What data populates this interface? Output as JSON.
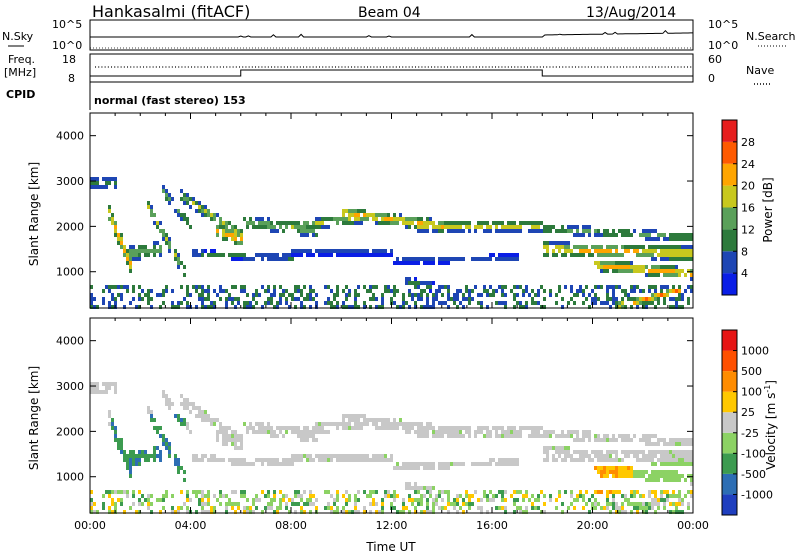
{
  "header": {
    "station": "Hankasalmi (fitACF)",
    "beam": "Beam 04",
    "date": "13/Aug/2014"
  },
  "top_panels": {
    "nsky_label": "N.Sky",
    "nsky_ticks": [
      "10^5",
      "10^0"
    ],
    "nsearch_label": "N.Search",
    "nsearch_ticks": [
      "10^5",
      "10^0"
    ],
    "freq_label_1": "Freq.",
    "freq_label_2": "[MHz]",
    "freq_ticks": [
      "18",
      "8"
    ],
    "nave_label": "Nave",
    "nave_ticks": [
      "60",
      "0"
    ],
    "cpid_label": "CPID",
    "cpid_text": "normal (fast stereo) 153"
  },
  "chart_data": [
    {
      "type": "heatmap",
      "name": "power-panel",
      "ylabel": "Slant Range [km]",
      "xlabel": "",
      "yticks": [
        1000,
        2000,
        3000,
        4000
      ],
      "ylim": [
        200,
        4500
      ],
      "xlim": [
        0,
        24
      ],
      "colorbar": {
        "label": "Power [dB]",
        "ticks": [
          "4",
          "8",
          "12",
          "16",
          "20",
          "24",
          "28"
        ],
        "colors": [
          "#0a1ee6",
          "#1e46b4",
          "#2d7a3c",
          "#5aa05a",
          "#c8c81e",
          "#ffa500",
          "#ff5a00",
          "#e61e1e"
        ]
      }
    },
    {
      "type": "heatmap",
      "name": "velocity-panel",
      "ylabel": "Slant Range [km]",
      "xlabel": "Time UT",
      "yticks": [
        1000,
        2000,
        3000,
        4000
      ],
      "ylim": [
        200,
        4500
      ],
      "xlim": [
        0,
        24
      ],
      "xticks": [
        "00:00",
        "04:00",
        "08:00",
        "12:00",
        "16:00",
        "20:00",
        "00:00"
      ],
      "colorbar": {
        "label": "Velocity [m s",
        "label_exp": "-1",
        "ticks": [
          "1000",
          "500",
          "100",
          "25",
          "-25",
          "-100",
          "-500",
          "-1000"
        ],
        "colors": [
          "#1f3fbf",
          "#2d6eb4",
          "#3c9b50",
          "#8cd264",
          "#c8c8c8",
          "#ffc800",
          "#ff8c00",
          "#ff5000",
          "#e61414"
        ]
      }
    }
  ]
}
